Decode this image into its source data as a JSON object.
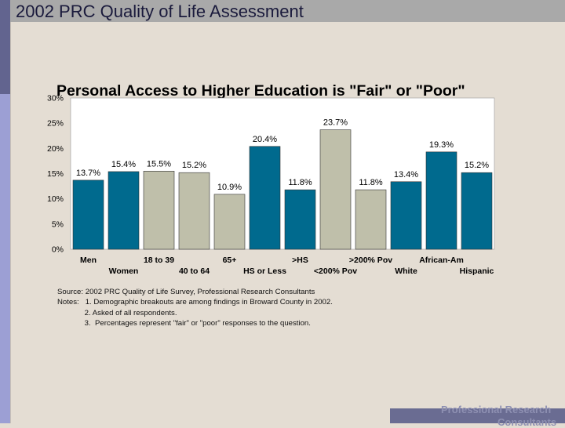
{
  "slide": {
    "title": "2002 PRC Quality of Life Assessment",
    "footer_line1": "Professional Research",
    "footer_line2": "Consultants"
  },
  "chart_data": {
    "type": "bar",
    "title": "Personal Access to Higher Education is \"Fair\" or \"Poor\"",
    "categories": [
      "Men",
      "Women",
      "18 to 39",
      "40 to 64",
      "65+",
      "HS or Less",
      ">HS",
      "<200% Pov",
      ">200% Pov",
      "White",
      "African-Am",
      "Hispanic"
    ],
    "values": [
      13.7,
      15.4,
      15.5,
      15.2,
      10.9,
      20.4,
      11.8,
      23.7,
      11.8,
      13.4,
      19.3,
      15.2
    ],
    "value_labels": [
      "13.7%",
      "15.4%",
      "15.5%",
      "15.2%",
      "10.9%",
      "20.4%",
      "11.8%",
      "23.7%",
      "11.8%",
      "13.4%",
      "19.3%",
      "15.2%"
    ],
    "bar_colors": [
      "#006a8e",
      "#006a8e",
      "#bfbfaa",
      "#bfbfaa",
      "#bfbfaa",
      "#006a8e",
      "#006a8e",
      "#bfbfaa",
      "#bfbfaa",
      "#006a8e",
      "#006a8e",
      "#006a8e"
    ],
    "ylim": [
      0,
      30
    ],
    "yticks": [
      "0%",
      "5%",
      "10%",
      "15%",
      "20%",
      "25%",
      "30%"
    ],
    "xlabel": "",
    "ylabel": "",
    "grid": false,
    "plot_background": "#ffffff"
  },
  "notes": [
    "Source: 2002 PRC Quality of Life Survey, Professional Research Consultants",
    "Notes:   1. Demographic breakouts are among findings in Broward County in 2002.",
    "             2. Asked of all respondents.",
    "             3.  Percentages represent \"fair\" or \"poor\" responses to the question."
  ]
}
